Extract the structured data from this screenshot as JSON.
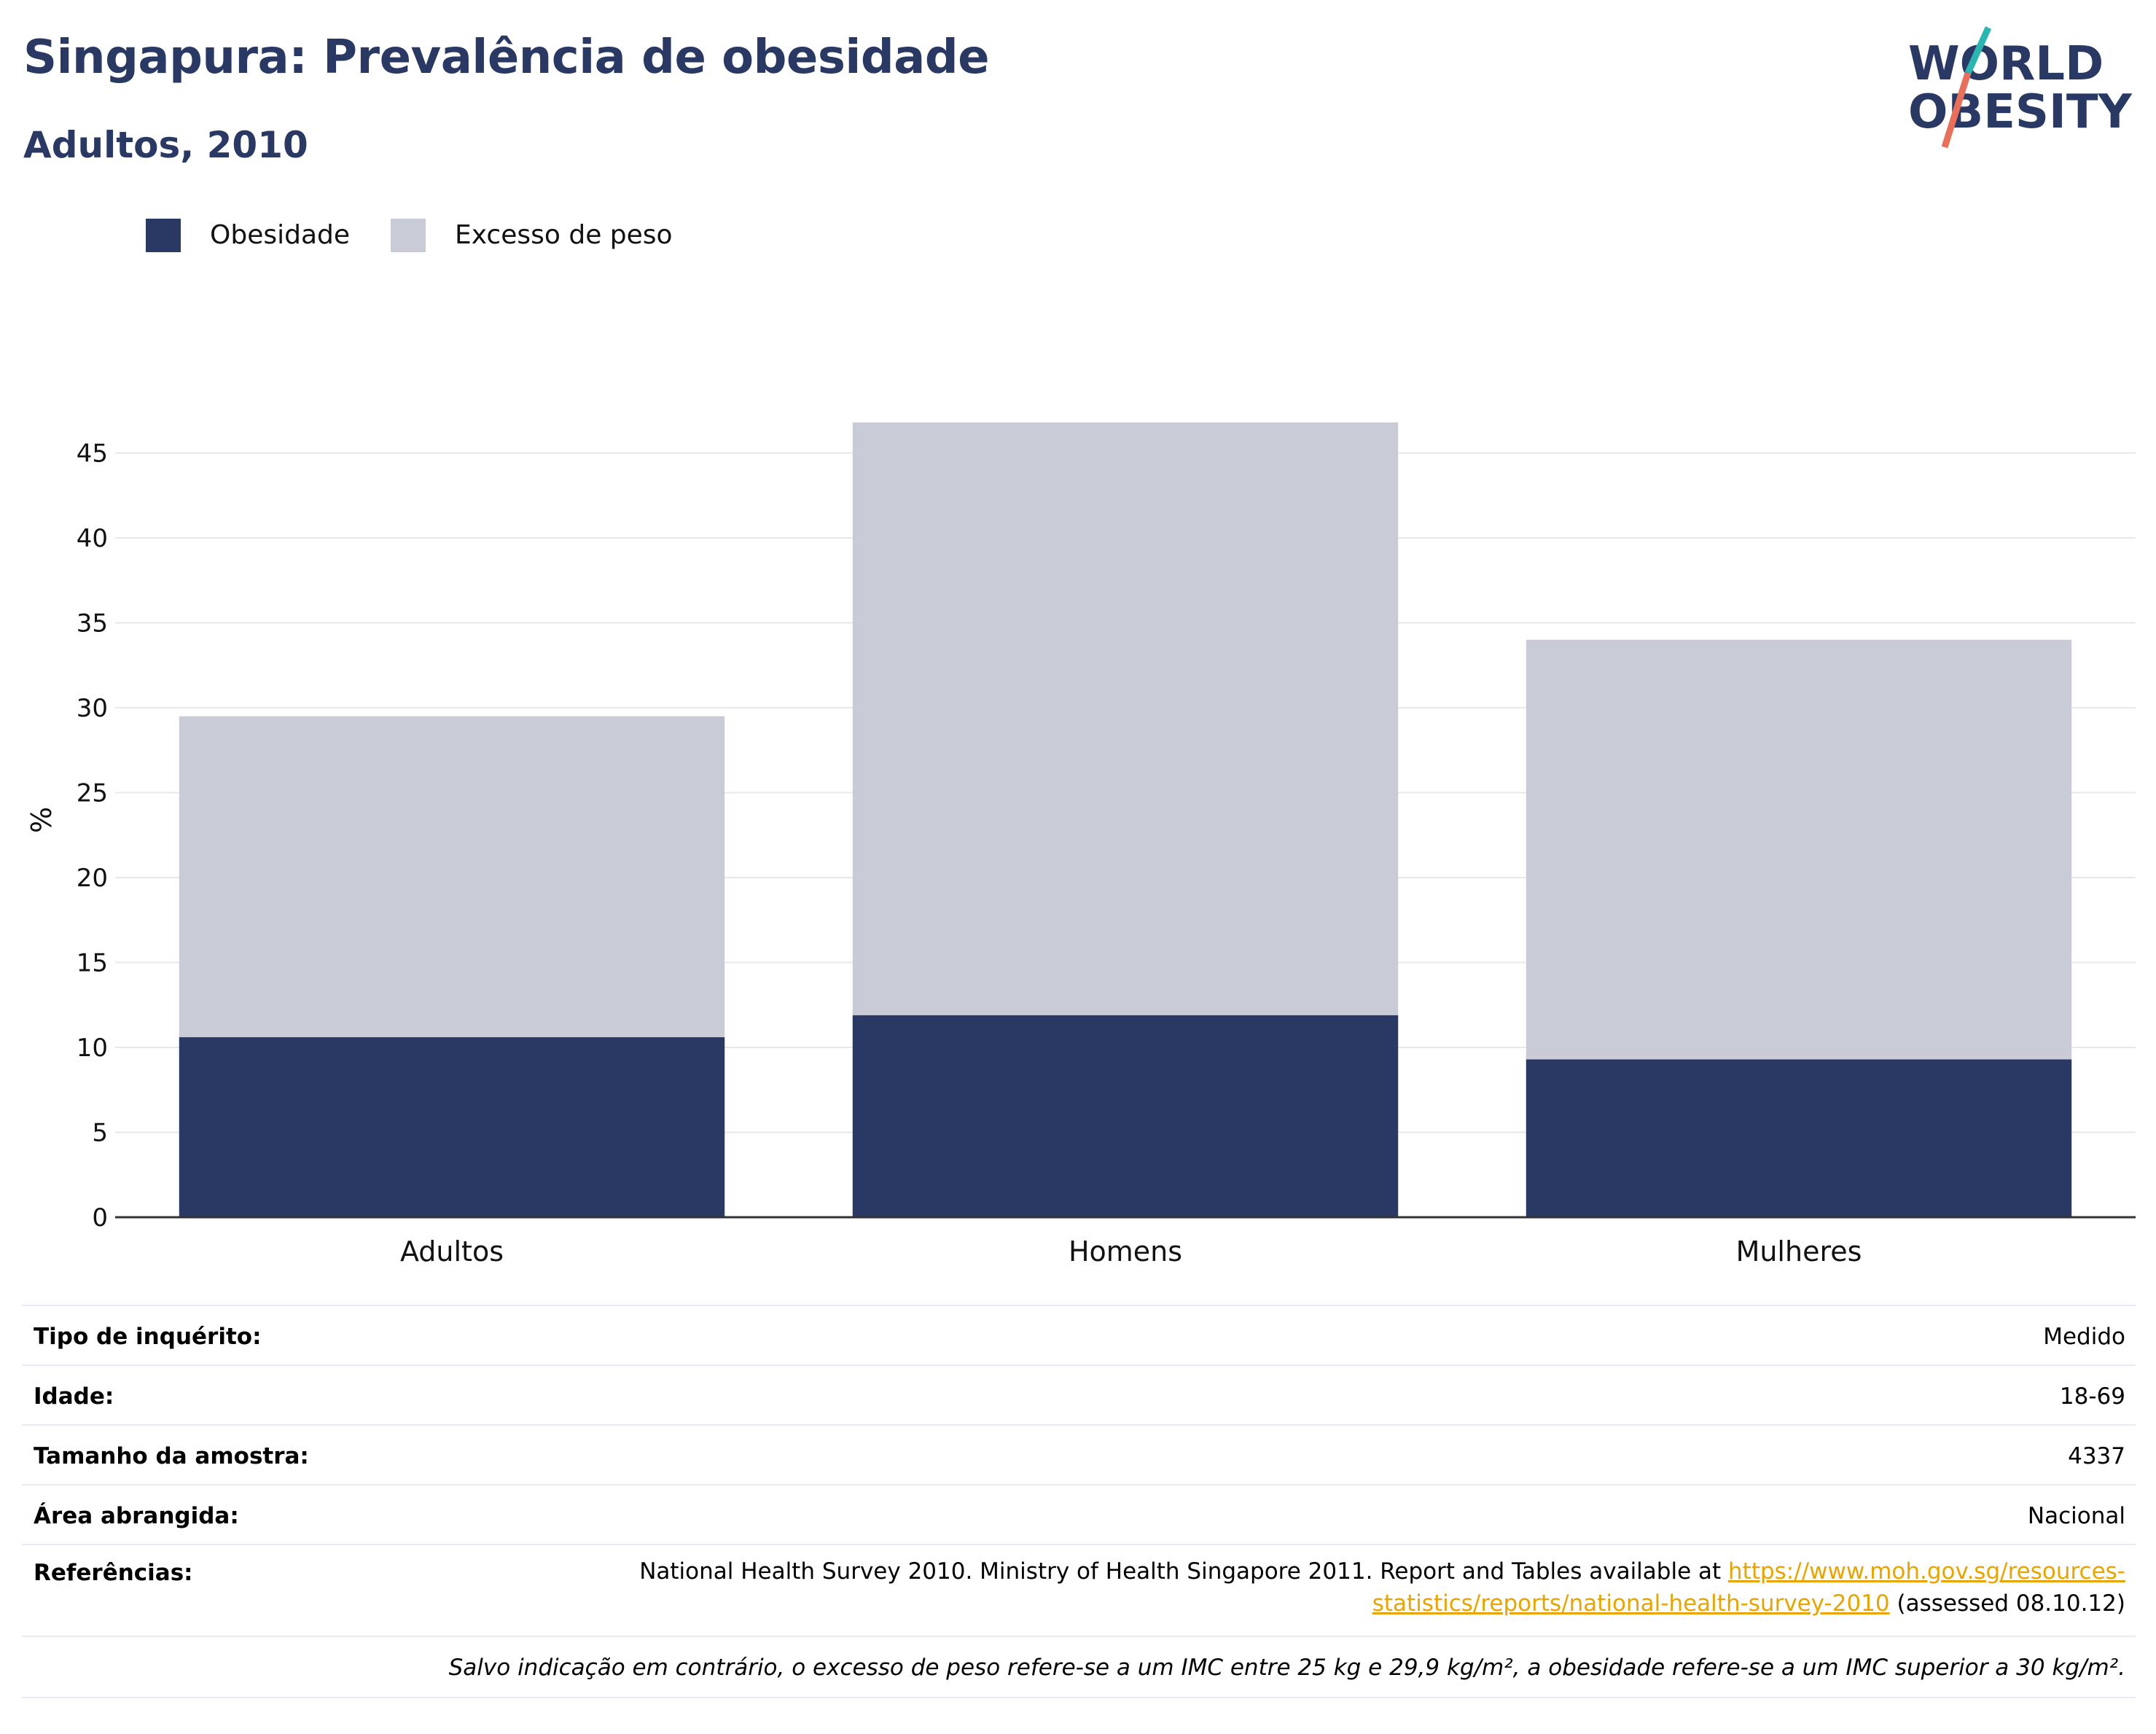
{
  "header": {
    "title": "Singapura: Prevalência de obesidade",
    "subtitle": "Adultos, 2010"
  },
  "logo": {
    "line1": "WORLD",
    "line2": "OBESITY",
    "accent_teal": "#2bb5b0",
    "accent_coral": "#e8705a"
  },
  "colors": {
    "obesity": "#2a3864",
    "overweight": "#c9cbd6",
    "title": "#2a3864",
    "link": "#e8a400"
  },
  "chart_data": {
    "type": "bar",
    "stacked": true,
    "categories": [
      "Adultos",
      "Homens",
      "Mulheres"
    ],
    "series": [
      {
        "name": "Obesidade",
        "values": [
          10.6,
          11.9,
          9.3
        ]
      },
      {
        "name": "Excesso de peso",
        "values": [
          18.9,
          34.9,
          24.7
        ]
      }
    ],
    "totals": [
      29.5,
      46.8,
      34.0
    ],
    "ylabel": "%",
    "ylim": [
      0,
      48.5
    ],
    "yticks": [
      0,
      5,
      10,
      15,
      20,
      25,
      30,
      35,
      40,
      45
    ],
    "grid": true,
    "legend_position": "top-left"
  },
  "info": {
    "rows": [
      {
        "label": "Tipo de inquérito:",
        "value": "Medido"
      },
      {
        "label": "Idade:",
        "value": "18-69"
      },
      {
        "label": "Tamanho da amostra:",
        "value": "4337"
      },
      {
        "label": "Área abrangida:",
        "value": "Nacional"
      }
    ],
    "references_label": "Referências:",
    "references_text_1": "National Health Survey 2010. Ministry of Health Singapore 2011. Report and Tables available at ",
    "references_link_1": "https://www.moh.gov.sg/resources-",
    "references_link_2": "statistics/reports/national-health-survey-2010",
    "references_text_2": " (assessed 08.10.12)",
    "note": "Salvo indicação em contrário, o excesso de peso refere-se a um IMC entre 25 kg e 29,9 kg/m², a obesidade refere-se a um IMC superior a 30 kg/m²."
  }
}
